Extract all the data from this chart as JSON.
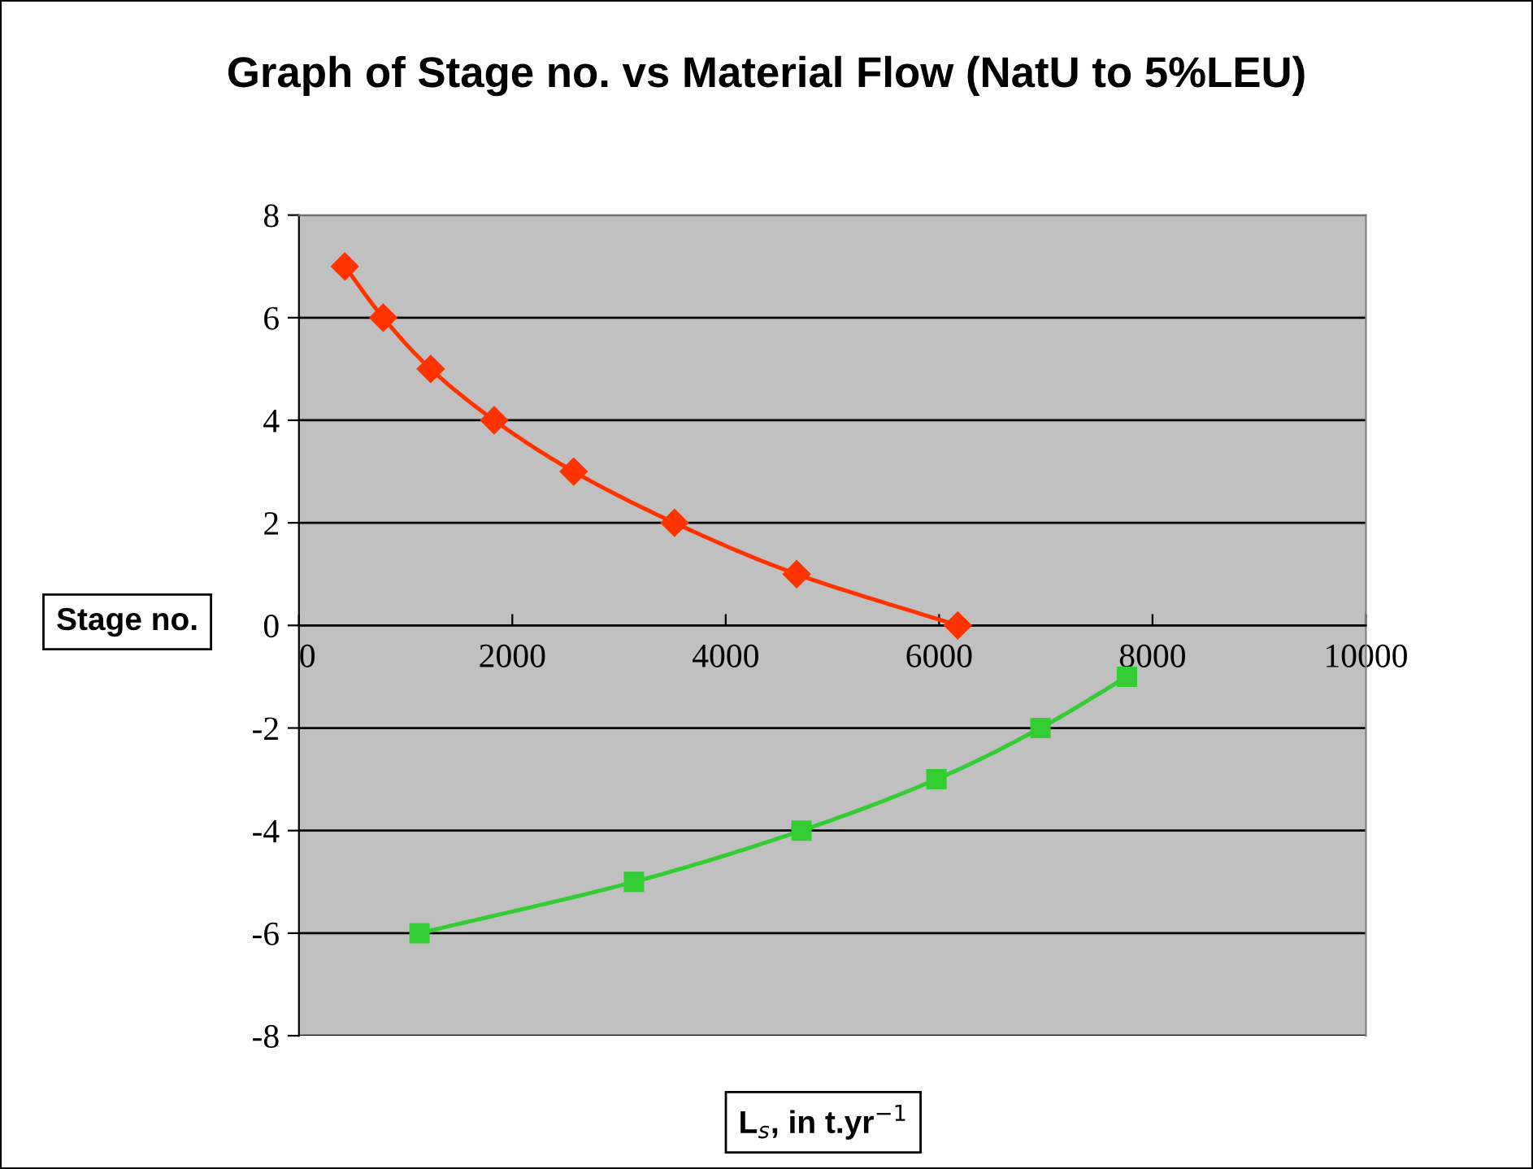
{
  "chart_data": {
    "type": "line",
    "title": "Graph of Stage no. vs Material Flow (NatU to 5%LEU)",
    "xlabel": "L$_{s}$, in t.yr$^{−1}$",
    "ylabel": "Stage no.",
    "xlim": [
      0,
      10000
    ],
    "xticks": [
      0,
      2000,
      4000,
      6000,
      8000,
      10000
    ],
    "ylim": [
      -8,
      8
    ],
    "yticks": [
      8,
      6,
      4,
      2,
      0,
      -2,
      -4,
      -6,
      -8
    ],
    "grid": "y",
    "legend": false,
    "series": [
      {
        "color": "#ff3300",
        "marker": "diamond",
        "x": [
          430,
          790,
          1235,
          1830,
          2575,
          3520,
          4665,
          6175
        ],
        "values": [
          7,
          6,
          5,
          4,
          3,
          2,
          1,
          0
        ]
      },
      {
        "color": "#33cc33",
        "marker": "square",
        "x": [
          1130,
          3140,
          4710,
          5975,
          6950,
          7760
        ],
        "values": [
          -6,
          -5,
          -4,
          -3,
          -2,
          -1
        ]
      }
    ]
  }
}
